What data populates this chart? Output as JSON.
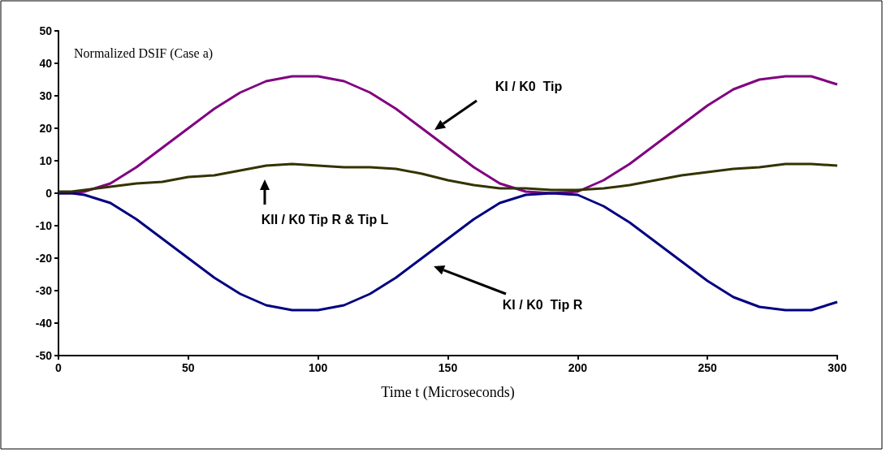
{
  "chart_data": {
    "type": "line",
    "title": "Normalized DSIF (Case a)",
    "xlabel": "Time t (Microseconds)",
    "x": [
      0,
      5,
      10,
      20,
      30,
      40,
      50,
      60,
      70,
      80,
      90,
      100,
      110,
      120,
      130,
      140,
      150,
      160,
      170,
      180,
      190,
      200,
      210,
      220,
      230,
      240,
      250,
      260,
      270,
      280,
      290,
      300
    ],
    "series": [
      {
        "color": "#800080",
        "values": [
          0,
          0,
          0.5,
          3,
          8,
          14,
          20,
          26,
          31,
          34.5,
          36,
          36,
          34.5,
          31,
          26,
          20,
          14,
          8,
          3,
          0.5,
          0,
          0.5,
          4,
          9,
          15,
          21,
          27,
          32,
          35,
          36,
          36,
          33.5
        ]
      },
      {
        "color": "#000080",
        "values": [
          0,
          0,
          -0.5,
          -3,
          -8,
          -14,
          -20,
          -26,
          -31,
          -34.5,
          -36,
          -36,
          -34.5,
          -31,
          -26,
          -20,
          -14,
          -8,
          -3,
          -0.5,
          0,
          -0.5,
          -4,
          -9,
          -15,
          -21,
          -27,
          -32,
          -35,
          -36,
          -36,
          -33.5
        ]
      },
      {
        "color": "#333300",
        "values": [
          0.5,
          0.5,
          1,
          2,
          3,
          3.5,
          5,
          5.5,
          7,
          8.5,
          9,
          8.5,
          8,
          8,
          7.5,
          6,
          4,
          2.5,
          1.5,
          1.5,
          1,
          1,
          1.5,
          2.5,
          4,
          5.5,
          6.5,
          7.5,
          8,
          9,
          9,
          8.5
        ]
      }
    ],
    "annotations": [
      "KI / K0  Tip",
      "KII / K0 Tip R & Tip L",
      "KI / K0  Tip R"
    ],
    "xlim": [
      0,
      300
    ],
    "xticks": [
      0,
      50,
      100,
      150,
      200,
      250,
      300
    ],
    "ylim": [
      -50,
      50
    ],
    "yticks": [
      -50,
      -40,
      -30,
      -20,
      -10,
      0,
      10,
      20,
      30,
      40,
      50
    ],
    "grid": false,
    "marker": "none",
    "line_style": "solid"
  }
}
